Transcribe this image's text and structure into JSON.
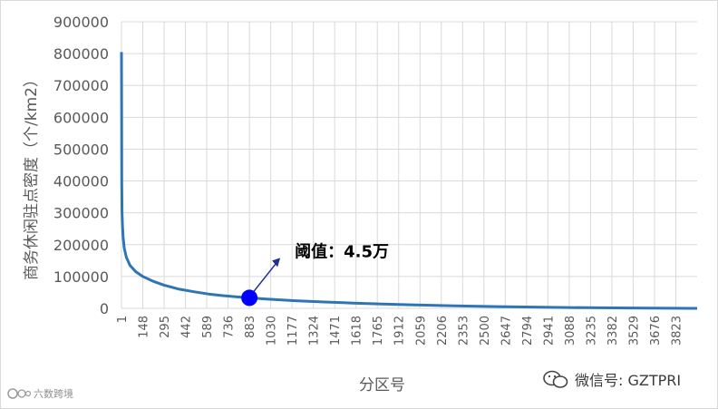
{
  "chart_data": {
    "type": "line",
    "ylabel": "商务休闲驻点密度（个/km2）",
    "xlabel": "分区号",
    "ylim": [
      0,
      900000
    ],
    "yticks": [
      0,
      100000,
      200000,
      300000,
      400000,
      500000,
      600000,
      700000,
      800000,
      900000
    ],
    "xlim": [
      1,
      3970
    ],
    "xticks": [
      1,
      148,
      295,
      442,
      589,
      736,
      883,
      1030,
      1177,
      1324,
      1471,
      1618,
      1765,
      1912,
      2059,
      2206,
      2353,
      2500,
      2647,
      2794,
      2941,
      3088,
      3235,
      3382,
      3529,
      3676,
      3823
    ],
    "grid": true,
    "series": [
      {
        "color": "#2e75b6",
        "x": [
          1,
          2,
          3,
          5,
          8,
          12,
          20,
          35,
          60,
          100,
          148,
          220,
          295,
          400,
          500,
          600,
          700,
          800,
          883,
          1000,
          1200,
          1400,
          1600,
          1800,
          2000,
          2300,
          2600,
          2900,
          3200,
          3500,
          3800,
          3970
        ],
        "y": [
          805000,
          560000,
          400000,
          300000,
          260000,
          225000,
          190000,
          160000,
          135000,
          115000,
          100000,
          85000,
          73000,
          60000,
          52000,
          45000,
          40000,
          36000,
          33000,
          29000,
          24000,
          20000,
          16500,
          13500,
          11000,
          8000,
          5500,
          3500,
          2000,
          1000,
          300,
          0
        ]
      }
    ],
    "highlight": {
      "x": 883,
      "y": 33000,
      "color": "#0000ff"
    },
    "annotation": {
      "text": "阈值：4.5万"
    }
  },
  "watermarks": {
    "left": "六数跨境",
    "right": "微信号: GZTPRI"
  }
}
